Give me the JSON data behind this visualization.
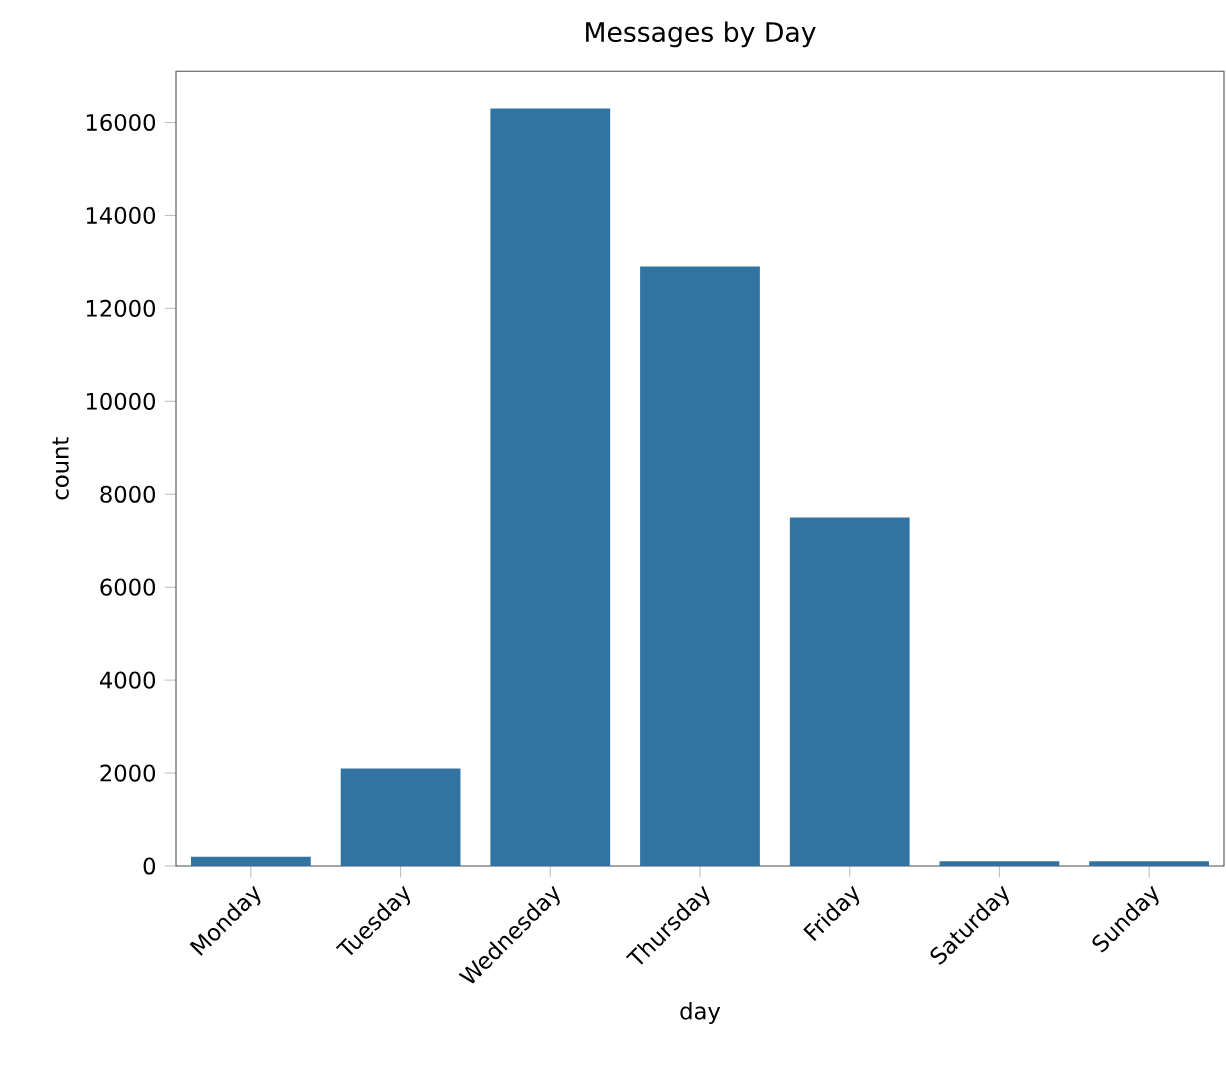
{
  "chart_data": {
    "type": "bar",
    "title": "Messages by Day",
    "xlabel": "day",
    "ylabel": "count",
    "categories": [
      "Monday",
      "Tuesday",
      "Wednesday",
      "Thursday",
      "Friday",
      "Saturday",
      "Sunday"
    ],
    "values": [
      200,
      2100,
      16300,
      12900,
      7500,
      100,
      100
    ],
    "color": "#3274a1",
    "ylim": [
      0,
      17100
    ],
    "yticks": [
      0,
      2000,
      4000,
      6000,
      8000,
      10000,
      12000,
      14000,
      16000
    ]
  }
}
